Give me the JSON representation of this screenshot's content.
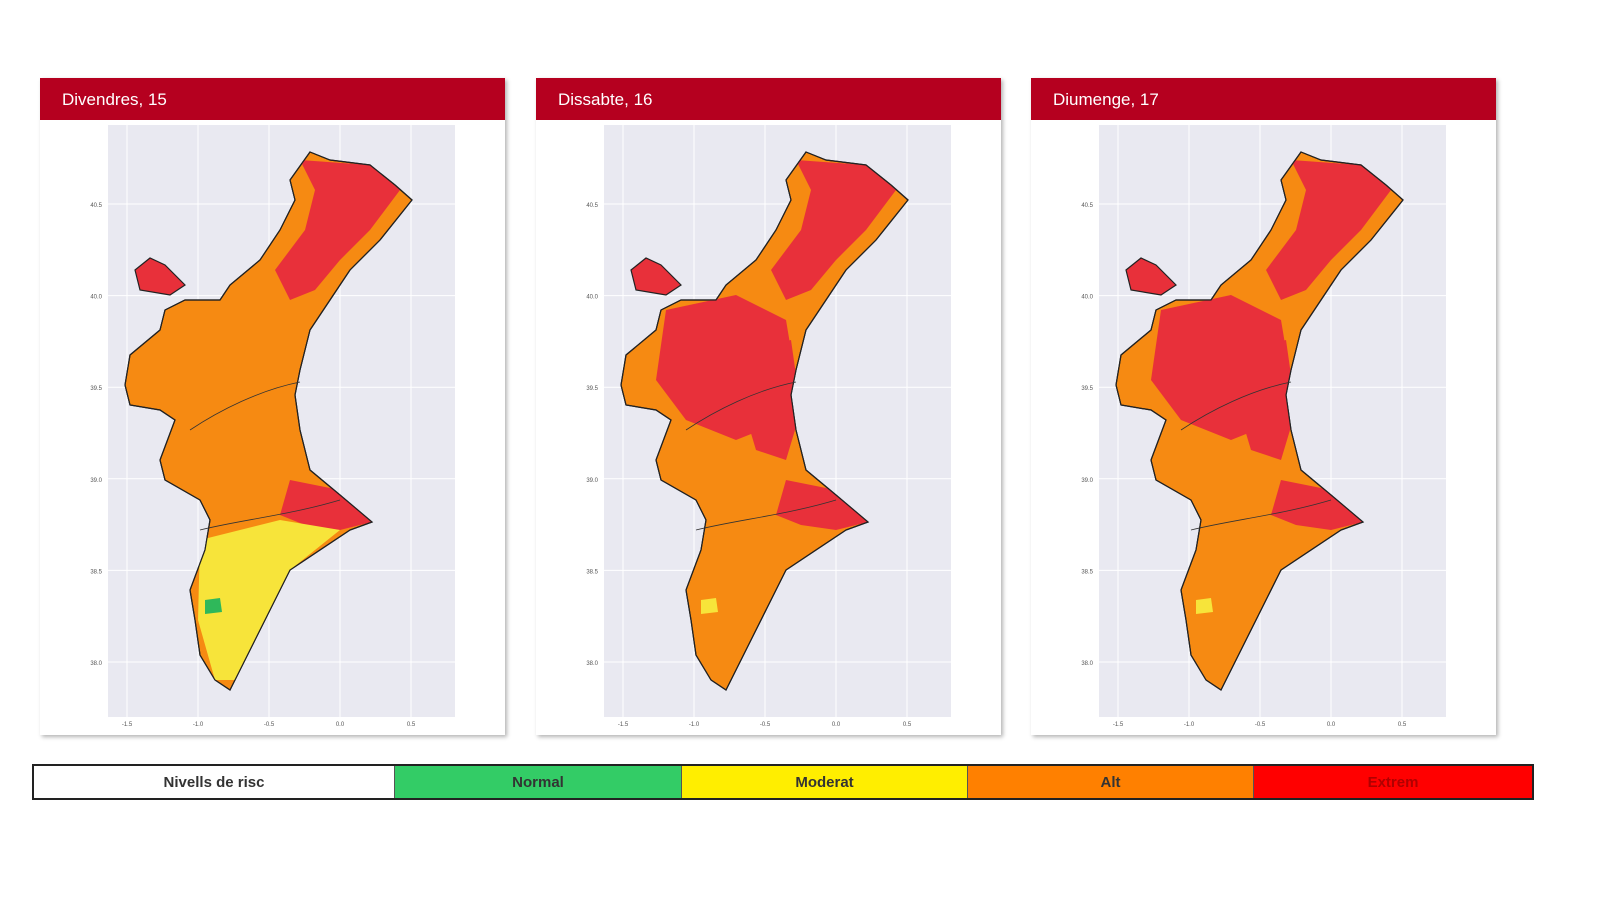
{
  "panels": [
    {
      "title": "Divendres, 15",
      "levels": {
        "north": "Extrem",
        "center": "Alt",
        "valencia": "Alt",
        "south": "Moderat",
        "east": "Extrem",
        "pockets": "Normal"
      }
    },
    {
      "title": "Dissabte, 16",
      "levels": {
        "north": "Extrem",
        "center": "Extrem",
        "valencia": "Extrem",
        "south": "Alt",
        "east": "Extrem",
        "pockets": "Moderat"
      }
    },
    {
      "title": "Diumenge, 17",
      "levels": {
        "north": "Extrem",
        "center": "Extrem",
        "valencia": "Extrem",
        "south": "Alt",
        "east": "Extrem",
        "pockets": "Moderat"
      }
    }
  ],
  "axes": {
    "y_ticks": [
      "40.5",
      "40.0",
      "39.5",
      "39.0",
      "38.5",
      "38.0"
    ],
    "x_ticks": [
      "-1.5",
      "-1.0",
      "-0.5",
      "0.0",
      "0.5"
    ]
  },
  "legend": {
    "title": "Nivells de risc",
    "levels": [
      {
        "label": "Normal",
        "color": "#33cc66"
      },
      {
        "label": "Moderat",
        "color": "#ffee00"
      },
      {
        "label": "Alt",
        "color": "#ff8000"
      },
      {
        "label": "Extrem",
        "color": "#ff0000"
      }
    ]
  },
  "map_colors": {
    "Normal": "#2fb85a",
    "Moderat": "#f7e43a",
    "Alt": "#f68a12",
    "Extrem": "#e8303a",
    "plot_bg": "#e9e9f1"
  }
}
